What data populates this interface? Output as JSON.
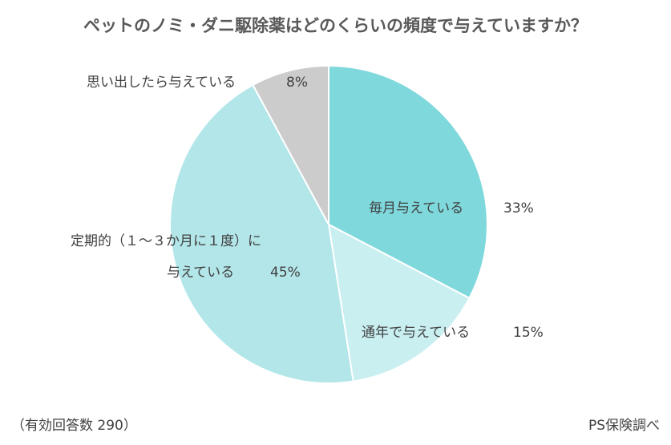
{
  "title": "ペットのノミ・ダニ駆除薬はどのくらいの頻度で与えていますか？",
  "chart_data": {
    "type": "pie",
    "title": "ペットのノミ・ダニ駆除薬はどのくらいの頻度で与えていますか？",
    "slices": [
      {
        "label": "毎月与えている",
        "value": 33,
        "display": "33%",
        "color": "#7fd8dc"
      },
      {
        "label": "通年で与えている",
        "value": 15,
        "display": "15%",
        "color": "#c9eff1"
      },
      {
        "label_lines": [
          "定期的（１～３か月に１度）に",
          "与えている"
        ],
        "value": 45,
        "display": "45%",
        "color": "#b3e6e9"
      },
      {
        "label": "思い出したら与えている",
        "value": 8,
        "display": "8%",
        "color": "#cccccc"
      }
    ]
  },
  "footer": {
    "sample": "（有効回答数 290）",
    "source": "PS保険調べ"
  }
}
